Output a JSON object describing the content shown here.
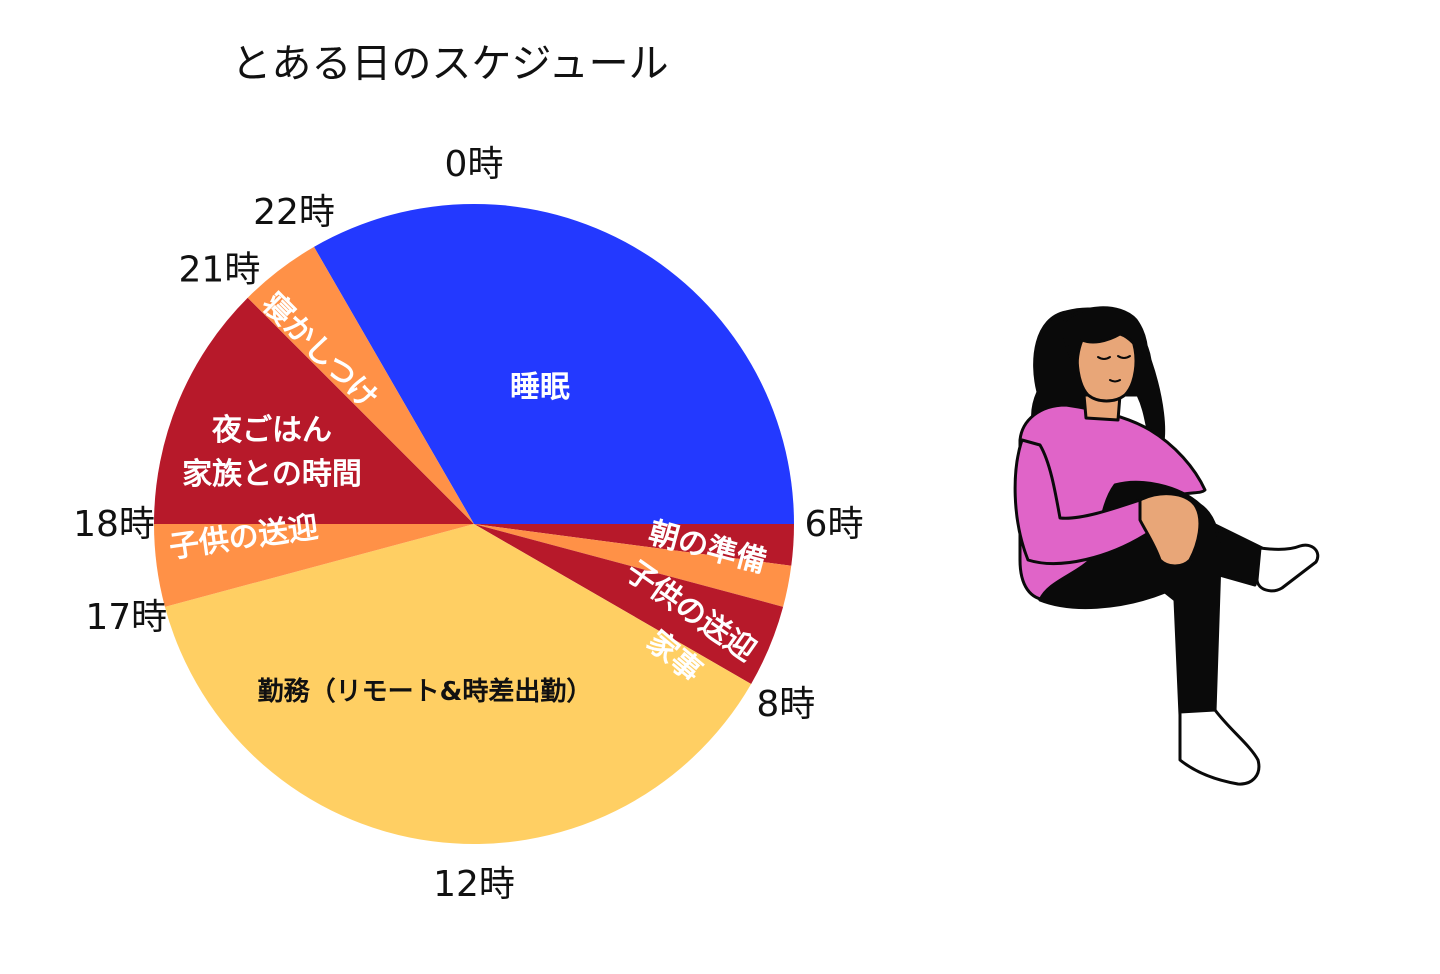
{
  "chart_data": {
    "type": "pie",
    "title": "とある日のスケジュール",
    "unit": "時",
    "slices": [
      {
        "label": "睡眠",
        "start": 22,
        "end": 30,
        "color": "#2339ff",
        "text_color": "light"
      },
      {
        "label": "朝の準備",
        "start": 6,
        "end": 6.5,
        "color": "#b7192a",
        "text_color": "light"
      },
      {
        "label": "子供の送迎",
        "start": 6.5,
        "end": 7.0,
        "color": "#ff9147",
        "text_color": "light"
      },
      {
        "label": "家事",
        "start": 7.0,
        "end": 8,
        "color": "#b7192a",
        "text_color": "light"
      },
      {
        "label": "勤務（リモート&時差出勤）",
        "start": 8,
        "end": 17,
        "color": "#ffcf63",
        "text_color": "dark"
      },
      {
        "label": "子供の送迎",
        "start": 17,
        "end": 18,
        "color": "#ff9147",
        "text_color": "light"
      },
      {
        "label": [
          "夜ごはん",
          "家族との時間"
        ],
        "start": 18,
        "end": 21,
        "color": "#b7192a",
        "text_color": "light"
      },
      {
        "label": "寝かしつけ",
        "start": 21,
        "end": 22,
        "color": "#ff9147",
        "text_color": "light"
      }
    ],
    "hour_labels": [
      {
        "text": "0時",
        "hour": 0
      },
      {
        "text": "6時",
        "hour": 6
      },
      {
        "text": "8時",
        "hour": 8
      },
      {
        "text": "12時",
        "hour": 12
      },
      {
        "text": "17時",
        "hour": 17
      },
      {
        "text": "18時",
        "hour": 18
      },
      {
        "text": "21時",
        "hour": 21
      },
      {
        "text": "22時",
        "hour": 22
      }
    ]
  },
  "illustration": {
    "name": "sitting-woman",
    "colors": {
      "hair": "#0a0a0a",
      "skin": "#e8a678",
      "shirt": "#e064c8",
      "pants": "#0a0a0a",
      "shoes": "#ffffff"
    }
  }
}
